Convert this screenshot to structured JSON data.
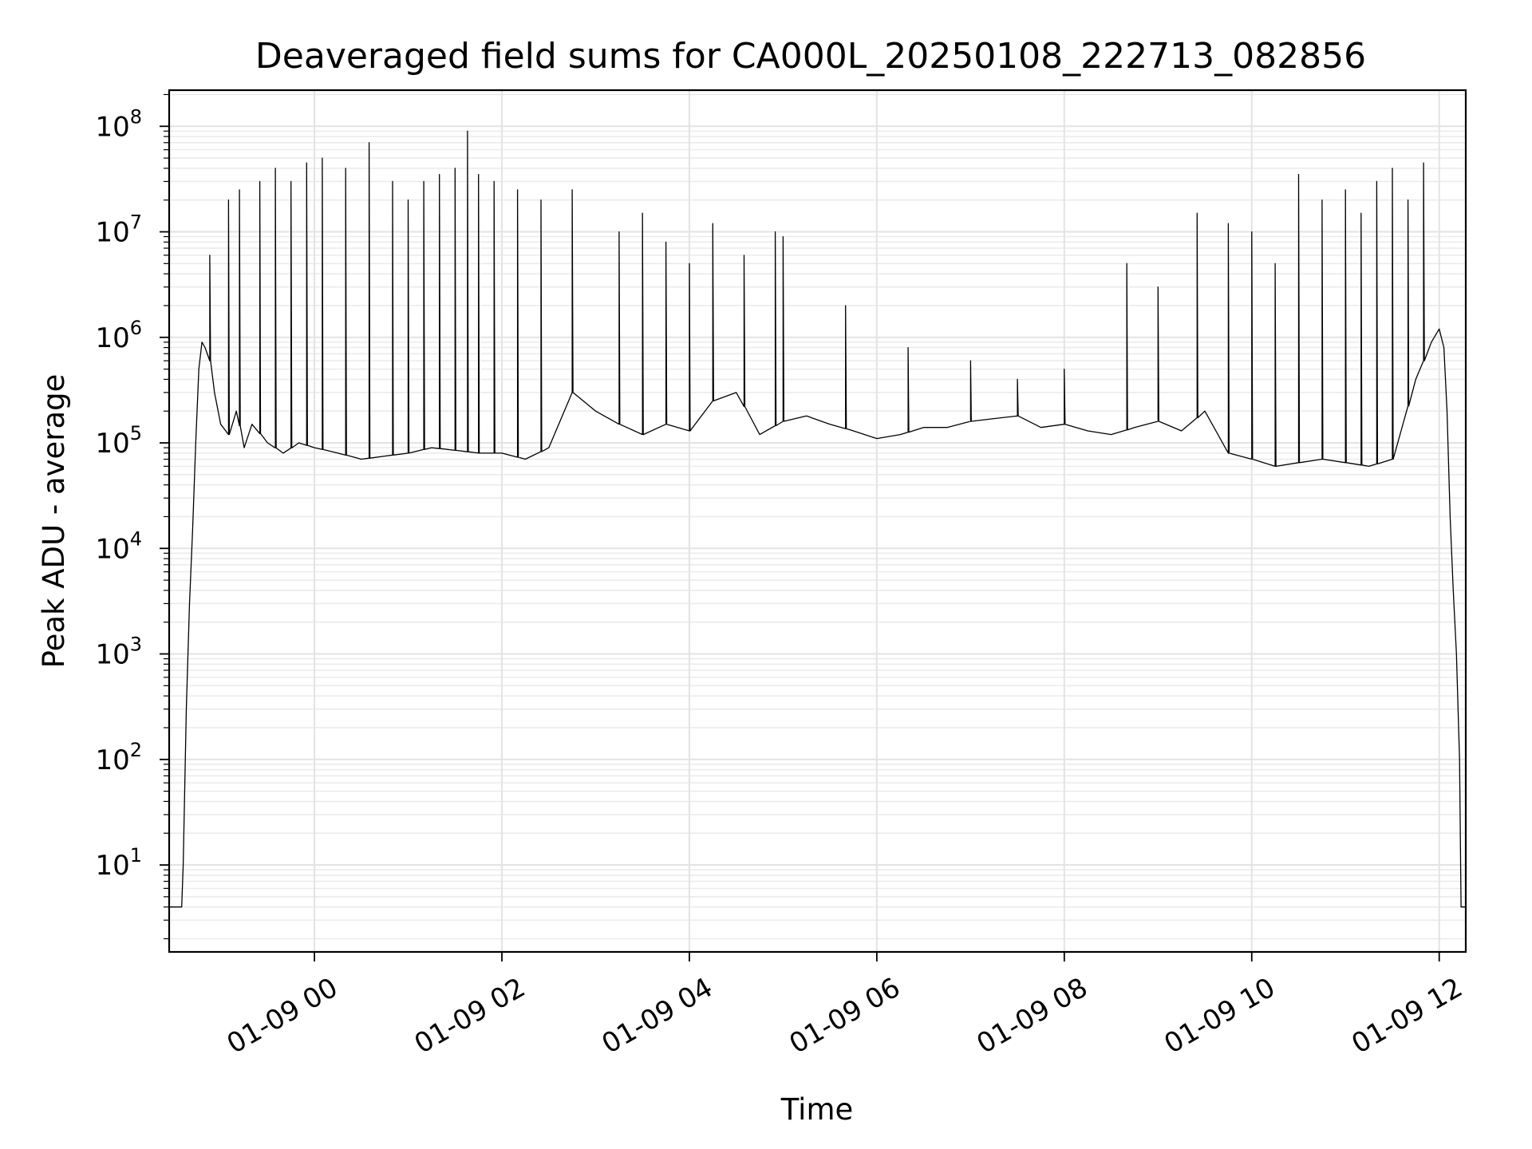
{
  "chart_data": {
    "type": "line",
    "title": "Deaveraged field sums for CA000L_20250108_222713_082856",
    "xlabel": "Time",
    "ylabel": "Peak ADU - average",
    "yscale": "log",
    "ylim": [
      1.5,
      220000000.0
    ],
    "xlim": [
      "01-08 22:27",
      "01-09 12:17"
    ],
    "grid": true,
    "color": "#000000",
    "x_ticks": [
      "01-09 00",
      "01-09 02",
      "01-09 04",
      "01-09 06",
      "01-09 08",
      "01-09 10",
      "01-09 12"
    ],
    "y_ticks": [
      {
        "base": "10",
        "exp": "1"
      },
      {
        "base": "10",
        "exp": "2"
      },
      {
        "base": "10",
        "exp": "3"
      },
      {
        "base": "10",
        "exp": "4"
      },
      {
        "base": "10",
        "exp": "5"
      },
      {
        "base": "10",
        "exp": "6"
      },
      {
        "base": "10",
        "exp": "7"
      },
      {
        "base": "10",
        "exp": "8"
      }
    ],
    "series": [
      {
        "x": [
          "01-08 22:27",
          "01-08 22:35",
          "01-08 22:36",
          "01-08 22:38",
          "01-08 22:40",
          "01-08 22:42",
          "01-08 22:44",
          "01-08 22:46",
          "01-08 22:48",
          "01-08 22:50",
          "01-08 22:53",
          "01-08 22:56",
          "01-08 23:00",
          "01-08 23:05",
          "01-08 23:10",
          "01-08 23:15",
          "01-08 23:20",
          "01-08 23:30",
          "01-08 23:40",
          "01-08 23:50",
          "01-09 00:00",
          "01-09 00:15",
          "01-09 00:30",
          "01-09 00:45",
          "01-09 01:00",
          "01-09 01:15",
          "01-09 01:30",
          "01-09 01:45",
          "01-09 02:00",
          "01-09 02:15",
          "01-09 02:30",
          "01-09 02:45",
          "01-09 03:00",
          "01-09 03:15",
          "01-09 03:30",
          "01-09 03:45",
          "01-09 04:00",
          "01-09 04:15",
          "01-09 04:30",
          "01-09 04:45",
          "01-09 05:00",
          "01-09 05:15",
          "01-09 05:30",
          "01-09 05:45",
          "01-09 06:00",
          "01-09 06:15",
          "01-09 06:30",
          "01-09 06:45",
          "01-09 07:00",
          "01-09 07:15",
          "01-09 07:30",
          "01-09 07:45",
          "01-09 08:00",
          "01-09 08:15",
          "01-09 08:30",
          "01-09 08:45",
          "01-09 09:00",
          "01-09 09:15",
          "01-09 09:30",
          "01-09 09:45",
          "01-09 10:00",
          "01-09 10:15",
          "01-09 10:30",
          "01-09 10:45",
          "01-09 11:00",
          "01-09 11:15",
          "01-09 11:30",
          "01-09 11:45",
          "01-09 11:55",
          "01-09 12:00",
          "01-09 12:03",
          "01-09 12:05",
          "01-09 12:07",
          "01-09 12:09",
          "01-09 12:11",
          "01-09 12:13",
          "01-09 12:14",
          "01-09 12:17"
        ],
        "y": [
          4,
          4,
          10,
          300,
          3000,
          15000,
          100000,
          500000,
          900000,
          800000,
          600000,
          300000,
          150000,
          120000,
          200000,
          90000,
          150000,
          100000,
          80000,
          100000,
          90000,
          80000,
          70000,
          75000,
          80000,
          90000,
          85000,
          80000,
          80000,
          70000,
          90000,
          300000,
          200000,
          150000,
          120000,
          150000,
          130000,
          250000,
          300000,
          120000,
          160000,
          180000,
          150000,
          130000,
          110000,
          120000,
          140000,
          140000,
          160000,
          170000,
          180000,
          140000,
          150000,
          130000,
          120000,
          140000,
          160000,
          130000,
          200000,
          80000,
          70000,
          60000,
          65000,
          70000,
          65000,
          60000,
          70000,
          400000,
          900000,
          1200000,
          800000,
          200000,
          20000,
          4000,
          1000,
          100,
          4,
          4
        ],
        "spikes_x": [
          "01-08 22:53",
          "01-08 23:05",
          "01-08 23:12",
          "01-08 23:25",
          "01-08 23:35",
          "01-08 23:45",
          "01-08 23:55",
          "01-09 00:05",
          "01-09 00:20",
          "01-09 00:35",
          "01-09 00:50",
          "01-09 01:00",
          "01-09 01:10",
          "01-09 01:20",
          "01-09 01:30",
          "01-09 01:38",
          "01-09 01:45",
          "01-09 01:55",
          "01-09 02:10",
          "01-09 02:25",
          "01-09 02:45",
          "01-09 03:15",
          "01-09 03:30",
          "01-09 03:45",
          "01-09 04:00",
          "01-09 04:15",
          "01-09 04:35",
          "01-09 04:55",
          "01-09 05:00",
          "01-09 05:40",
          "01-09 06:20",
          "01-09 07:00",
          "01-09 07:30",
          "01-09 08:00",
          "01-09 08:40",
          "01-09 09:00",
          "01-09 09:25",
          "01-09 09:45",
          "01-09 10:00",
          "01-09 10:15",
          "01-09 10:30",
          "01-09 10:45",
          "01-09 11:00",
          "01-09 11:10",
          "01-09 11:20",
          "01-09 11:30",
          "01-09 11:40",
          "01-09 11:50"
        ],
        "spikes_y": [
          6000000,
          20000000,
          25000000,
          30000000,
          40000000,
          30000000,
          45000000,
          50000000,
          40000000,
          70000000,
          30000000,
          20000000,
          30000000,
          35000000,
          40000000,
          90000000,
          35000000,
          30000000,
          25000000,
          20000000,
          25000000,
          10000000,
          15000000,
          8000000,
          5000000,
          12000000,
          6000000,
          10000000,
          9000000,
          2000000,
          800000,
          600000,
          400000,
          500000,
          5000000,
          3000000,
          15000000,
          12000000,
          10000000,
          5000000,
          35000000,
          20000000,
          25000000,
          15000000,
          30000000,
          40000000,
          20000000,
          45000000
        ]
      }
    ]
  }
}
